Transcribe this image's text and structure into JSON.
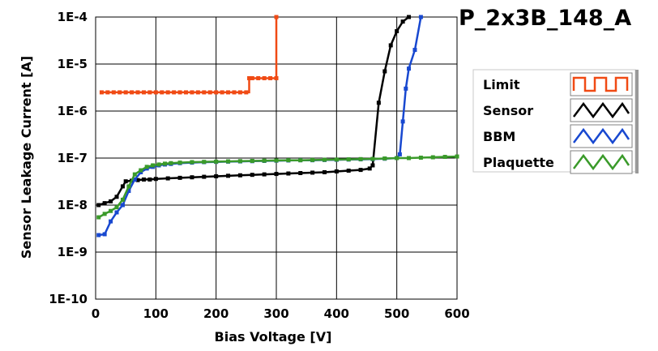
{
  "chart_data": {
    "type": "line",
    "title": "P_2x3B_148_A",
    "xlabel": "Bias Voltage [V]",
    "ylabel": "Sensor Leakage Current [A]",
    "xlim": [
      0,
      600
    ],
    "ylim": [
      1e-10,
      0.0001
    ],
    "y_scale": "log",
    "grid": true,
    "legend_position": "right",
    "x_ticks": [
      {
        "value": 0,
        "label": "0"
      },
      {
        "value": 100,
        "label": "100"
      },
      {
        "value": 200,
        "label": "200"
      },
      {
        "value": 300,
        "label": "300"
      },
      {
        "value": 400,
        "label": "400"
      },
      {
        "value": 500,
        "label": "500"
      },
      {
        "value": 600,
        "label": "600"
      }
    ],
    "y_ticks": [
      {
        "value": 0.0001,
        "label": "1E-4"
      },
      {
        "value": 1e-05,
        "label": "1E-5"
      },
      {
        "value": 1e-06,
        "label": "1E-6"
      },
      {
        "value": 1e-07,
        "label": "1E-7"
      },
      {
        "value": 1e-08,
        "label": "1E-8"
      },
      {
        "value": 1e-09,
        "label": "1E-9"
      },
      {
        "value": 1e-10,
        "label": "1E-10"
      }
    ],
    "series": [
      {
        "name": "Limit",
        "color": "#f04a14",
        "step": true,
        "x": [
          10,
          20,
          30,
          40,
          50,
          60,
          70,
          80,
          90,
          100,
          110,
          120,
          130,
          140,
          150,
          160,
          170,
          180,
          190,
          200,
          210,
          220,
          230,
          240,
          250,
          255,
          260,
          270,
          280,
          290,
          300,
          300
        ],
        "y": [
          2.5e-06,
          2.5e-06,
          2.5e-06,
          2.5e-06,
          2.5e-06,
          2.5e-06,
          2.5e-06,
          2.5e-06,
          2.5e-06,
          2.5e-06,
          2.5e-06,
          2.5e-06,
          2.5e-06,
          2.5e-06,
          2.5e-06,
          2.5e-06,
          2.5e-06,
          2.5e-06,
          2.5e-06,
          2.5e-06,
          2.5e-06,
          2.5e-06,
          2.5e-06,
          2.5e-06,
          2.5e-06,
          5e-06,
          5e-06,
          5e-06,
          5e-06,
          5e-06,
          5e-06,
          0.0001
        ]
      },
      {
        "name": "Sensor",
        "color": "#000000",
        "step": false,
        "x": [
          5,
          15,
          25,
          35,
          45,
          50,
          60,
          70,
          80,
          90,
          100,
          120,
          140,
          160,
          180,
          200,
          220,
          240,
          260,
          280,
          300,
          320,
          340,
          360,
          380,
          400,
          420,
          440,
          455,
          460,
          470,
          480,
          490,
          500,
          510,
          520
        ],
        "y": [
          1e-08,
          1.1e-08,
          1.2e-08,
          1.5e-08,
          2.5e-08,
          3.2e-08,
          3.3e-08,
          3.4e-08,
          3.5e-08,
          3.5e-08,
          3.6e-08,
          3.7e-08,
          3.8e-08,
          3.9e-08,
          4e-08,
          4.1e-08,
          4.2e-08,
          4.3e-08,
          4.4e-08,
          4.5e-08,
          4.6e-08,
          4.7e-08,
          4.8e-08,
          4.9e-08,
          5e-08,
          5.2e-08,
          5.4e-08,
          5.6e-08,
          6e-08,
          7e-08,
          1.5e-06,
          7e-06,
          2.5e-05,
          5e-05,
          8e-05,
          0.0001
        ]
      },
      {
        "name": "BBM",
        "color": "#1848d0",
        "step": false,
        "x": [
          5,
          15,
          25,
          35,
          45,
          55,
          65,
          75,
          85,
          95,
          105,
          115,
          125,
          140,
          160,
          180,
          200,
          220,
          240,
          260,
          280,
          300,
          320,
          340,
          360,
          380,
          400,
          420,
          440,
          460,
          480,
          500,
          505,
          510,
          515,
          520,
          530,
          540
        ],
        "y": [
          2.3e-09,
          2.4e-09,
          4.5e-09,
          7e-09,
          1e-08,
          2e-08,
          3.5e-08,
          5e-08,
          6e-08,
          6.5e-08,
          7e-08,
          7.3e-08,
          7.5e-08,
          7.8e-08,
          8e-08,
          8.2e-08,
          8.3e-08,
          8.4e-08,
          8.5e-08,
          8.6e-08,
          8.7e-08,
          8.8e-08,
          8.9e-08,
          9e-08,
          9e-08,
          9.1e-08,
          9.2e-08,
          9.3e-08,
          9.4e-08,
          9.5e-08,
          9.7e-08,
          1e-07,
          1.2e-07,
          6e-07,
          3e-06,
          8e-06,
          2e-05,
          0.0001
        ]
      },
      {
        "name": "Plaquette",
        "color": "#3a9a2a",
        "step": false,
        "x": [
          5,
          15,
          25,
          35,
          45,
          55,
          65,
          75,
          85,
          95,
          105,
          115,
          125,
          140,
          160,
          180,
          200,
          220,
          240,
          260,
          280,
          300,
          320,
          340,
          360,
          380,
          400,
          420,
          440,
          460,
          480,
          500,
          520,
          540,
          560,
          580,
          600
        ],
        "y": [
          5.5e-09,
          6.5e-09,
          7.5e-09,
          9e-09,
          1.3e-08,
          2.5e-08,
          4.5e-08,
          5.5e-08,
          6.5e-08,
          7e-08,
          7.3e-08,
          7.6e-08,
          7.8e-08,
          8e-08,
          8.2e-08,
          8.3e-08,
          8.4e-08,
          8.5e-08,
          8.6e-08,
          8.7e-08,
          8.8e-08,
          8.9e-08,
          9e-08,
          9e-08,
          9.1e-08,
          9.2e-08,
          9.3e-08,
          9.4e-08,
          9.5e-08,
          9.6e-08,
          9.8e-08,
          1e-07,
          1e-07,
          1.02e-07,
          1.04e-07,
          1.06e-07,
          1.08e-07
        ]
      }
    ]
  }
}
